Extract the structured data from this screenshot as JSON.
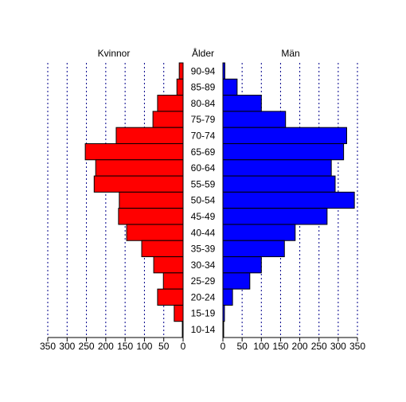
{
  "chart_data": {
    "type": "population-pyramid",
    "category_label": "Ålder",
    "categories": [
      "90-94",
      "85-89",
      "80-84",
      "75-79",
      "70-74",
      "65-69",
      "60-64",
      "55-59",
      "50-54",
      "45-49",
      "40-44",
      "35-39",
      "30-34",
      "25-29",
      "20-24",
      "15-19",
      "10-14"
    ],
    "series": [
      {
        "name": "Kvinnor",
        "color": "#ff0000",
        "side": "left",
        "values": [
          10,
          16,
          66,
          78,
          173,
          253,
          226,
          230,
          165,
          167,
          146,
          107,
          76,
          51,
          66,
          23,
          2
        ]
      },
      {
        "name": "Män",
        "color": "#0000ff",
        "side": "right",
        "values": [
          5,
          37,
          100,
          163,
          322,
          314,
          282,
          292,
          342,
          271,
          188,
          160,
          100,
          70,
          25,
          4,
          2
        ]
      }
    ],
    "xlim": [
      0,
      350
    ],
    "xticks": [
      0,
      50,
      100,
      150,
      200,
      250,
      300,
      350
    ],
    "grid": true,
    "grid_color": "#00008b"
  }
}
